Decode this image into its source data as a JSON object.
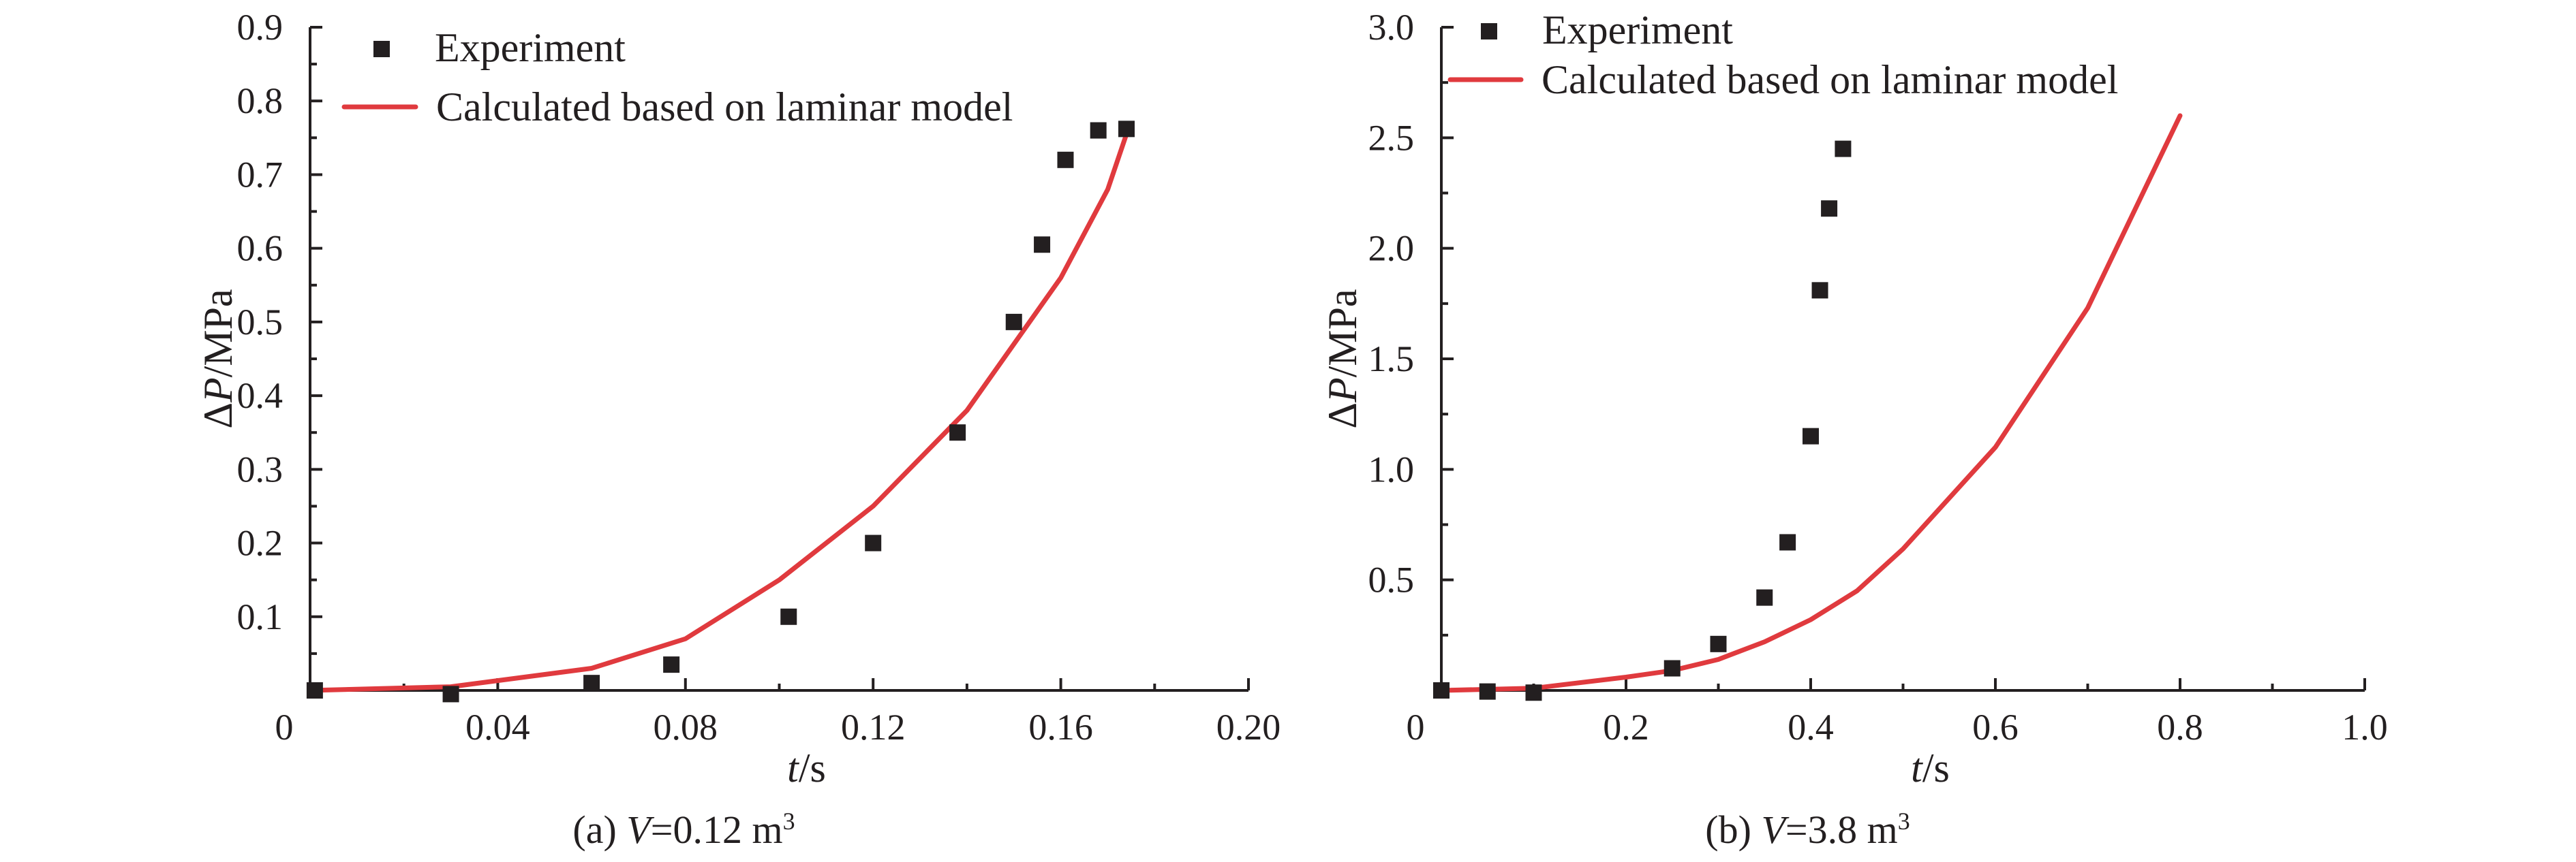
{
  "chart_data": [
    {
      "type": "scatter",
      "xlabel": {
        "italic": "t",
        "rest": "/s"
      },
      "ylabel": {
        "prefix": "Δ",
        "italic": "P",
        "rest": "/MPa"
      },
      "caption": {
        "prefix": "(a) ",
        "italic": "V",
        "rest": "=0.12 m",
        "sup": "3"
      },
      "xlim": [
        0,
        0.2
      ],
      "ylim": [
        0,
        0.9
      ],
      "x_ticks": [
        0,
        0.04,
        0.08,
        0.12,
        0.16,
        0.2
      ],
      "x_tick_labels": [
        "0",
        "0.04",
        "0.08",
        "0.12",
        "0.16",
        "0.20"
      ],
      "y_ticks": [
        0.1,
        0.2,
        0.3,
        0.4,
        0.5,
        0.6,
        0.7,
        0.8,
        0.9
      ],
      "y_tick_labels": [
        "0.1",
        "0.2",
        "0.3",
        "0.4",
        "0.5",
        "0.6",
        "0.7",
        "0.8",
        "0.9"
      ],
      "legend_position": "top-left",
      "series": [
        {
          "name": "Experiment",
          "kind": "markers",
          "color": "#231f20",
          "x": [
            0.001,
            0.03,
            0.06,
            0.077,
            0.102,
            0.12,
            0.138,
            0.15,
            0.156,
            0.161,
            0.168,
            0.174
          ],
          "y": [
            0.0,
            -0.005,
            0.01,
            0.035,
            0.1,
            0.2,
            0.35,
            0.5,
            0.605,
            0.72,
            0.76,
            0.762
          ]
        },
        {
          "name": "Calculated based on laminar model",
          "kind": "line",
          "color": "#e03a3e",
          "x": [
            0,
            0.03,
            0.06,
            0.08,
            0.1,
            0.12,
            0.14,
            0.16,
            0.17,
            0.174
          ],
          "y": [
            0.0,
            0.005,
            0.03,
            0.07,
            0.15,
            0.25,
            0.38,
            0.56,
            0.68,
            0.755
          ]
        }
      ]
    },
    {
      "type": "scatter",
      "xlabel": {
        "italic": "t",
        "rest": "/s"
      },
      "ylabel": {
        "prefix": "Δ",
        "italic": "P",
        "rest": "/MPa"
      },
      "caption": {
        "prefix": "(b) ",
        "italic": "V",
        "rest": "=3.8 m",
        "sup": "3"
      },
      "xlim": [
        0,
        1.0
      ],
      "ylim": [
        0,
        3.0
      ],
      "x_ticks": [
        0,
        0.2,
        0.4,
        0.6,
        0.8,
        1.0
      ],
      "x_tick_labels": [
        "0",
        "0.2",
        "0.4",
        "0.6",
        "0.8",
        "1.0"
      ],
      "y_ticks": [
        0.5,
        1.0,
        1.5,
        2.0,
        2.5,
        3.0
      ],
      "y_tick_labels": [
        "0.5",
        "1.0",
        "1.5",
        "2.0",
        "2.5",
        "3.0"
      ],
      "legend_position": "top-left",
      "series": [
        {
          "name": "Experiment",
          "kind": "markers",
          "color": "#231f20",
          "x": [
            0.0,
            0.05,
            0.1,
            0.25,
            0.3,
            0.35,
            0.375,
            0.4,
            0.41,
            0.42,
            0.435
          ],
          "y": [
            0.0,
            -0.005,
            -0.01,
            0.1,
            0.21,
            0.42,
            0.67,
            1.15,
            1.81,
            2.18,
            2.45
          ]
        },
        {
          "name": "Calculated based on laminar model",
          "kind": "line",
          "color": "#e03a3e",
          "x": [
            0,
            0.1,
            0.2,
            0.25,
            0.3,
            0.35,
            0.4,
            0.45,
            0.5,
            0.6,
            0.7,
            0.8
          ],
          "y": [
            0.0,
            0.01,
            0.06,
            0.09,
            0.14,
            0.22,
            0.32,
            0.45,
            0.64,
            1.1,
            1.73,
            2.6
          ]
        }
      ]
    }
  ]
}
